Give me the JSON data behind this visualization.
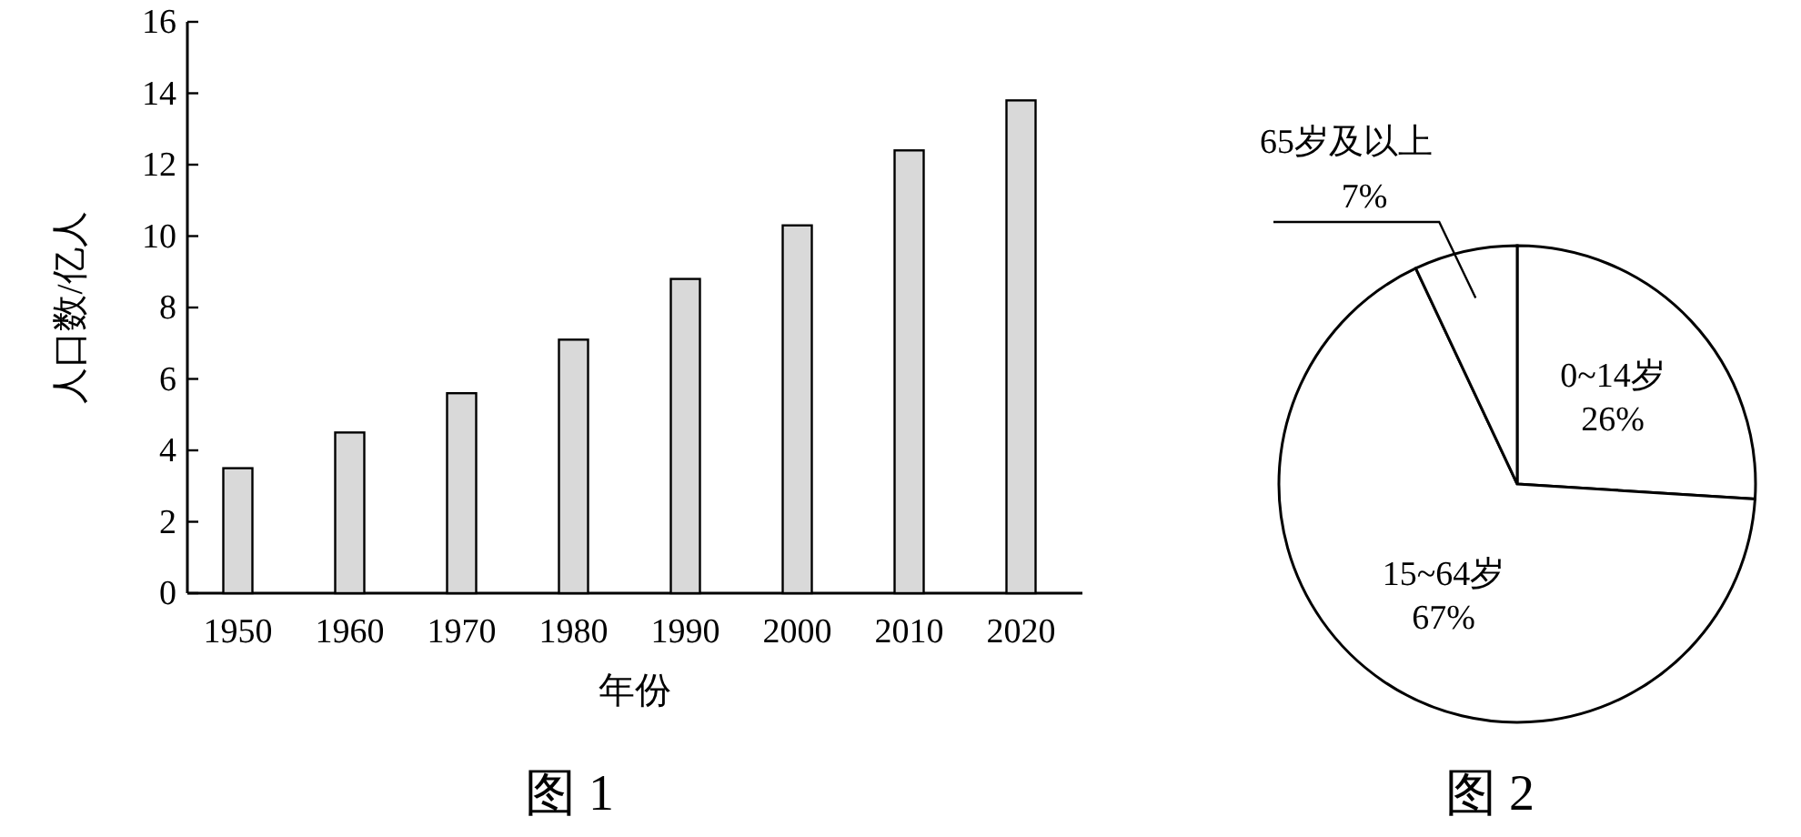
{
  "chart_data": [
    {
      "type": "bar",
      "categories": [
        "1950",
        "1960",
        "1970",
        "1980",
        "1990",
        "2000",
        "2010",
        "2020"
      ],
      "values": [
        3.5,
        4.5,
        5.6,
        7.1,
        8.8,
        10.3,
        12.4,
        13.8
      ],
      "color": "#d9d9d9",
      "xlabel": "年份",
      "ylabel": "人口数/亿人",
      "ylim": [
        0,
        16
      ],
      "yticks": [
        0,
        2,
        4,
        6,
        8,
        10,
        12,
        14,
        16
      ],
      "annotations": [
        "图 1"
      ]
    },
    {
      "type": "pie",
      "categories": [
        "0~14岁",
        "15~64岁",
        "65岁及以上"
      ],
      "values": [
        26,
        67,
        7
      ],
      "colors": [
        "#ffffff",
        "#ffffff",
        "#ffffff"
      ],
      "value_labels": [
        "26%",
        "67%",
        "7%"
      ],
      "annotations": [
        "图 2"
      ]
    }
  ]
}
